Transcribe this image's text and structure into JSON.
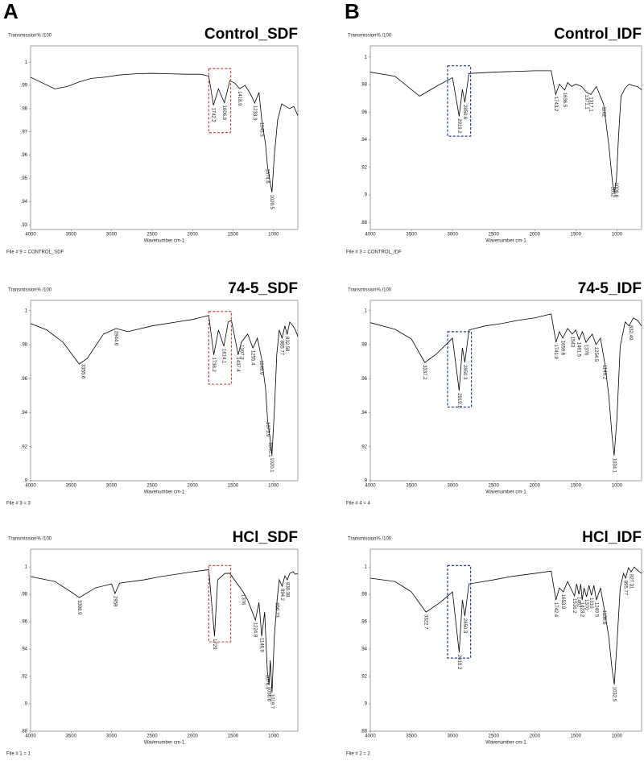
{
  "panel_labels": [
    "A",
    "B"
  ],
  "chart_data": [
    {
      "type": "line",
      "title": "Control_SDF",
      "ylabel": "Transmission% /100",
      "xlabel": "Wavenumber cm-1",
      "footer": "File # 9 = CONTROL_SDF",
      "color": "#000000",
      "xlim": [
        4000,
        700
      ],
      "ylim": [
        0.928,
        1.007
      ],
      "xticks": [
        4000,
        3500,
        3000,
        2500,
        2000,
        1500,
        1000
      ],
      "yticks": [
        1,
        {
          "value": 0.99,
          "label": ".99"
        },
        {
          "value": 0.98,
          "label": ".98"
        },
        {
          "value": 0.97,
          "label": ".97"
        },
        {
          "value": 0.96,
          "label": ".96"
        },
        {
          "value": 0.95,
          "label": ".95"
        },
        {
          "value": 0.94,
          "label": ".94"
        },
        {
          "value": 0.93,
          "label": ".93"
        }
      ],
      "x": [
        4000,
        3850,
        3700,
        3550,
        3400,
        3250,
        3100,
        2900,
        2700,
        2500,
        2300,
        2100,
        1900,
        1800,
        1742,
        1680,
        1607,
        1540,
        1480,
        1419,
        1350,
        1280,
        1233,
        1180,
        1145,
        1100,
        1074,
        1040,
        1020,
        990,
        950,
        900,
        850,
        800,
        750,
        700
      ],
      "values": [
        0.9935,
        0.991,
        0.9885,
        0.9895,
        0.9915,
        0.993,
        0.9935,
        0.9945,
        0.995,
        0.9952,
        0.995,
        0.9948,
        0.9948,
        0.994,
        0.9815,
        0.9885,
        0.9825,
        0.992,
        0.991,
        0.9886,
        0.99,
        0.986,
        0.9824,
        0.987,
        0.975,
        0.965,
        0.955,
        0.948,
        0.944,
        0.96,
        0.975,
        0.982,
        0.981,
        0.98,
        0.981,
        0.977
      ],
      "peaks": [
        1742.2,
        1606.9,
        1418.9,
        1233.3,
        1145.5,
        1074.6,
        1020.5
      ],
      "highlight": {
        "x": [
          1800,
          1530
        ],
        "y": [
          0.9972,
          0.9697
        ],
        "color": "#c0504d"
      }
    },
    {
      "type": "line",
      "title": "Control_IDF",
      "ylabel": "Transmission% /100",
      "xlabel": "Wavenumber cm-1",
      "footer": "File # 3 = CONTROL_IDF",
      "color": "#000000",
      "xlim": [
        4000,
        700
      ],
      "ylim": [
        0.875,
        1.008
      ],
      "xticks": [
        4000,
        3500,
        3000,
        2500,
        2000,
        1500,
        1000
      ],
      "yticks": [
        1,
        {
          "value": 0.98,
          "label": ".98"
        },
        {
          "value": 0.96,
          "label": ".96"
        },
        {
          "value": 0.94,
          "label": ".94"
        },
        {
          "value": 0.92,
          "label": ".92"
        },
        {
          "value": 0.9,
          "label": ".9"
        },
        {
          "value": 0.88,
          "label": ".88"
        }
      ],
      "x": [
        4000,
        3700,
        3400,
        3200,
        3000,
        2919,
        2880,
        2850,
        2800,
        2500,
        2000,
        1800,
        1745,
        1700,
        1636,
        1600,
        1550,
        1500,
        1430,
        1371,
        1317,
        1250,
        1162,
        1100,
        1052,
        1030,
        1006,
        980,
        950,
        900,
        850,
        800,
        750,
        700
      ],
      "values": [
        0.989,
        0.986,
        0.9716,
        0.9786,
        0.985,
        0.957,
        0.9765,
        0.967,
        0.988,
        0.989,
        0.99,
        0.99,
        0.9728,
        0.9803,
        0.976,
        0.9814,
        0.9786,
        0.9803,
        0.9786,
        0.9745,
        0.9728,
        0.9786,
        0.9658,
        0.937,
        0.908,
        0.902,
        0.911,
        0.943,
        0.9716,
        0.9774,
        0.9803,
        0.9791,
        0.9786,
        0.9762
      ],
      "peaks": [
        2919.2,
        2850.6,
        1743.2,
        1636.5,
        1371.1,
        1317.1,
        1162,
        1052,
        1006.6
      ],
      "highlight": {
        "x": [
          3060,
          2780
        ],
        "y": [
          0.9936,
          0.9426
        ],
        "color": "#2e3f8f"
      }
    },
    {
      "type": "line",
      "title": "74-5_SDF",
      "ylabel": "Transmission% /100",
      "xlabel": "Wavenumber cm-1",
      "footer": "File # 3 = 3",
      "color": "#000000",
      "xlim": [
        4000,
        700
      ],
      "ylim": [
        0.9,
        1.006
      ],
      "xticks": [
        4000,
        3500,
        3000,
        2500,
        2000,
        1500,
        1000
      ],
      "yticks": [
        1,
        {
          "value": 0.98,
          "label": ".98"
        },
        {
          "value": 0.96,
          "label": ".96"
        },
        {
          "value": 0.94,
          "label": ".94"
        },
        {
          "value": 0.92,
          "label": ".92"
        },
        {
          "value": 0.9,
          "label": ".9"
        }
      ],
      "x": [
        4000,
        3800,
        3600,
        3400,
        3300,
        3100,
        2944,
        2800,
        2500,
        2200,
        2000,
        1800,
        1738,
        1680,
        1614,
        1560,
        1520,
        1437,
        1397,
        1320,
        1255,
        1200,
        1149,
        1100,
        1074,
        1040,
        1020,
        990,
        960,
        930,
        895,
        860,
        832,
        800,
        760,
        730,
        700
      ],
      "values": [
        0.9924,
        0.9886,
        0.9814,
        0.9686,
        0.9719,
        0.9862,
        0.9895,
        0.9876,
        0.991,
        0.9933,
        0.9948,
        0.9971,
        0.974,
        0.9886,
        0.979,
        0.9933,
        0.9943,
        0.974,
        0.9814,
        0.9862,
        0.978,
        0.9838,
        0.972,
        0.955,
        0.936,
        0.924,
        0.915,
        0.941,
        0.9743,
        0.9886,
        0.9838,
        0.991,
        0.986,
        0.9933,
        0.991,
        0.9886,
        0.9848
      ],
      "peaks": [
        3355.6,
        2944.6,
        1738.2,
        1614.1,
        1437.4,
        1397.3,
        1255.4,
        1149.9,
        1073.9,
        1040.1,
        1020.1,
        895.77,
        832.58
      ],
      "highlight": {
        "x": [
          1800,
          1520
        ],
        "y": [
          0.9995,
          0.9567
        ],
        "color": "#c0504d"
      }
    },
    {
      "type": "line",
      "title": "74-5_IDF",
      "ylabel": "Transmission% /100",
      "xlabel": "Wavenumber cm-1",
      "footer": "File # 4 = 4",
      "color": "#000000",
      "xlim": [
        4000,
        700
      ],
      "ylim": [
        0.9,
        1.006
      ],
      "xticks": [
        4000,
        3500,
        3000,
        2500,
        2000,
        1500,
        1000
      ],
      "yticks": [
        1,
        {
          "value": 0.98,
          "label": ".98"
        },
        {
          "value": 0.96,
          "label": ".96"
        },
        {
          "value": 0.94,
          "label": ".94"
        },
        {
          "value": 0.92,
          "label": ".92"
        },
        {
          "value": 0.9,
          "label": ".9"
        }
      ],
      "x": [
        4000,
        3700,
        3500,
        3337,
        3200,
        3000,
        2919,
        2880,
        2850,
        2800,
        2600,
        2400,
        2200,
        2000,
        1800,
        1741,
        1700,
        1659,
        1600,
        1543,
        1500,
        1461,
        1420,
        1376,
        1300,
        1254,
        1200,
        1149,
        1100,
        1060,
        1034,
        1000,
        960,
        900,
        852,
        800,
        750,
        700
      ],
      "values": [
        0.9929,
        0.989,
        0.9833,
        0.9695,
        0.9743,
        0.9838,
        0.9529,
        0.9781,
        0.9695,
        0.9886,
        0.991,
        0.9924,
        0.9943,
        0.9957,
        0.998,
        0.9814,
        0.9876,
        0.9838,
        0.9895,
        0.9862,
        0.9886,
        0.9829,
        0.9876,
        0.9814,
        0.9862,
        0.98,
        0.9838,
        0.9695,
        0.9505,
        0.9267,
        0.9148,
        0.9362,
        0.979,
        0.9933,
        0.991,
        0.9957,
        0.9943,
        0.991
      ],
      "peaks": [
        3337.2,
        2919.1,
        2850.3,
        1741.9,
        1659.6,
        1543,
        1461.5,
        1376,
        1254.5,
        1149.2,
        1034.1,
        832.49
      ],
      "highlight": {
        "x": [
          3060,
          2770
        ],
        "y": [
          0.9876,
          0.9433
        ],
        "color": "#2e3f8f"
      }
    },
    {
      "type": "line",
      "title": "HCl_SDF",
      "ylabel": "Transmission% /100",
      "xlabel": "Wavenumber cm-1",
      "footer": "File # 1 = 1",
      "color": "#000000",
      "xlim": [
        4000,
        700
      ],
      "ylim": [
        0.88,
        1.013
      ],
      "xticks": [
        4000,
        3500,
        3000,
        2500,
        2000,
        1500,
        1000
      ],
      "yticks": [
        1,
        {
          "value": 0.98,
          "label": ".98"
        },
        {
          "value": 0.96,
          "label": ".96"
        },
        {
          "value": 0.94,
          "label": ".94"
        },
        {
          "value": 0.92,
          "label": ".92"
        },
        {
          "value": 0.9,
          "label": ".9"
        },
        {
          "value": 0.88,
          "label": ".88"
        }
      ],
      "x": [
        4000,
        3700,
        3500,
        3398,
        3200,
        3000,
        2958,
        2900,
        2600,
        2400,
        2200,
        2000,
        1800,
        1729,
        1690,
        1600,
        1540,
        1376,
        1320,
        1224,
        1180,
        1146,
        1110,
        1076,
        1056,
        1040,
        1019,
        990,
        956,
        930,
        894,
        860,
        830,
        800,
        760,
        730,
        700
      ],
      "values": [
        0.993,
        0.9894,
        0.9818,
        0.9776,
        0.9847,
        0.9876,
        0.9806,
        0.9882,
        0.9906,
        0.9929,
        0.9947,
        0.9965,
        0.998,
        0.9494,
        0.9906,
        0.9953,
        0.9953,
        0.9818,
        0.9759,
        0.9612,
        0.9741,
        0.9494,
        0.9671,
        0.923,
        0.9141,
        0.9318,
        0.9082,
        0.9494,
        0.9759,
        0.9906,
        0.9859,
        0.9935,
        0.9906,
        0.9953,
        0.9965,
        0.9947,
        0.9953
      ],
      "peaks": [
        3398.9,
        2958,
        1729,
        1376,
        1224.8,
        1146.9,
        1076.1,
        1056.6,
        1019.7,
        956.23,
        894.2,
        830.38
      ],
      "highlight": {
        "x": [
          1800,
          1530
        ],
        "y": [
          1.001,
          0.9453
        ],
        "color": "#c0504d"
      }
    },
    {
      "type": "line",
      "title": "HCl_IDF",
      "ylabel": "Transmission% /100",
      "xlabel": "Wavenumber cm-1",
      "footer": "File # 2 = 2",
      "color": "#000000",
      "xlim": [
        4000,
        700
      ],
      "ylim": [
        0.88,
        1.013
      ],
      "xticks": [
        4000,
        3500,
        3000,
        2500,
        2000,
        1500,
        1000
      ],
      "yticks": [
        1,
        {
          "value": 0.98,
          "label": ".98"
        },
        {
          "value": 0.96,
          "label": ".96"
        },
        {
          "value": 0.94,
          "label": ".94"
        },
        {
          "value": 0.92,
          "label": ".92"
        },
        {
          "value": 0.9,
          "label": ".9"
        },
        {
          "value": 0.88,
          "label": ".88"
        }
      ],
      "x": [
        4000,
        3700,
        3500,
        3322,
        3150,
        3000,
        2919,
        2880,
        2850,
        2800,
        2500,
        2300,
        2000,
        1800,
        1742,
        1700,
        1653,
        1600,
        1516,
        1490,
        1462,
        1440,
        1423,
        1400,
        1370,
        1340,
        1310,
        1280,
        1249,
        1200,
        1156,
        1100,
        1060,
        1032,
        1000,
        960,
        920,
        895,
        860,
        827,
        790,
        750,
        700
      ],
      "values": [
        0.9918,
        0.9894,
        0.9818,
        0.967,
        0.9741,
        0.9818,
        0.9376,
        0.9759,
        0.9641,
        0.9876,
        0.9906,
        0.9929,
        0.9953,
        0.997,
        0.9759,
        0.9847,
        0.9818,
        0.9894,
        0.9788,
        0.9876,
        0.98,
        0.9876,
        0.9759,
        0.9847,
        0.9782,
        0.9865,
        0.9794,
        0.9865,
        0.9759,
        0.9847,
        0.97,
        0.9494,
        0.9259,
        0.9141,
        0.9435,
        0.9847,
        0.9953,
        0.9918,
        0.9994,
        0.9965,
        1,
        0.9976,
        0.9953
      ],
      "peaks": [
        3322.7,
        2919.2,
        2850.3,
        1742.4,
        1653.9,
        1516.2,
        1462,
        1423.2,
        1370,
        1310,
        1249.5,
        1156.6,
        1032.5,
        895.77,
        827.31
      ],
      "highlight": {
        "x": [
          3060,
          2780
        ],
        "y": [
          1.001,
          0.9335
        ],
        "color": "#2e3f8f"
      }
    }
  ]
}
